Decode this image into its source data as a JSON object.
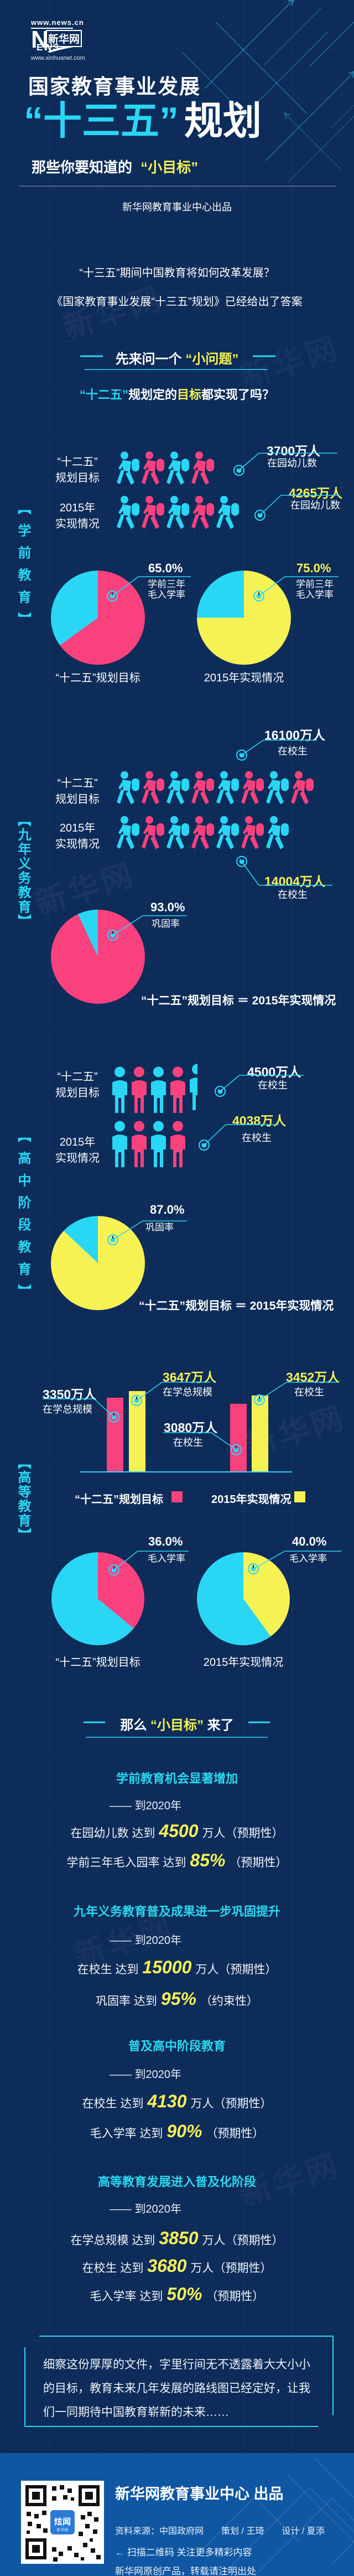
{
  "theme": {
    "bg": "#0d2c59",
    "cyan": "#29d7f5",
    "pink": "#f9417e",
    "yellow": "#f7f254",
    "white": "#ffffff",
    "footer_bg": "#0f57a2",
    "goal_title": "#2bd8f0"
  },
  "logo": {
    "top_url": "www.news.cn",
    "n": "N",
    "ews": "EWS",
    "brand": "新华网",
    "bottom_url": "www.xinhuanet.com"
  },
  "header": {
    "kicker": "国家教育事业发展",
    "title_em": "“十三五”",
    "title_rest": "规划",
    "sub_prefix": "那些你要知道的",
    "sub_em": "“小目标”",
    "byline": "新华网教育事业中心出品"
  },
  "intro": {
    "line1": "“十三五”期间中国教育将如何改革发展？",
    "line2": "《国家教育事业发展“十三五”规划》已经给出了答案",
    "ask_prefix": "先来问一个",
    "ask_em": "“小问题”",
    "q_em": "“十二五”",
    "q_mid": "规划定的",
    "q_target": "目标",
    "q_rest": "都实现了吗？"
  },
  "labels": {
    "preschool": "【学前教育】",
    "compulsory": "【九年义务教育】",
    "highschool": "【高中阶段教育】",
    "higher": "【高等教育】"
  },
  "rows": {
    "preschool_target": {
      "l1": "“十二五”",
      "l2": "规划目标",
      "icons": 4,
      "half": false,
      "type": "walk",
      "value": "3700万人",
      "metric": "在园幼儿数"
    },
    "preschool_actual": {
      "l1": "2015年",
      "l2": "实现情况",
      "icons": 5,
      "half": false,
      "type": "walk",
      "value": "4265万人",
      "metric": "在园幼儿数"
    },
    "compulsory_target": {
      "l1": "“十二五”",
      "l2": "规划目标",
      "icons": 8,
      "half": false,
      "type": "walk",
      "value": "16100万人",
      "metric": "在校生"
    },
    "compulsory_actual": {
      "l1": "2015年",
      "l2": "实现情况",
      "icons": 7,
      "half": false,
      "type": "walk",
      "value": "14004万人",
      "metric": "在校生"
    },
    "highschool_target": {
      "l1": "“十二五”",
      "l2": "规划目标",
      "icons": 4,
      "half": true,
      "type": "stand",
      "value": "4500万人",
      "metric": "在校生"
    },
    "highschool_actual": {
      "l1": "2015年",
      "l2": "实现情况",
      "icons": 4,
      "half": false,
      "type": "stand",
      "value": "4038万人",
      "metric": "在校生"
    }
  },
  "pies": {
    "preschool_target": {
      "pct_label": "65.0%",
      "sub1": "学前三年",
      "sub2": "毛入学率",
      "caption": "“十二五”规划目标"
    },
    "preschool_actual": {
      "pct_label": "75.0%",
      "sub1": "学前三年",
      "sub2": "毛入学率",
      "caption": "2015年实现情况"
    },
    "compulsory": {
      "pct_label": "93.0%",
      "sub1": "巩固率",
      "note": "“十二五”规划目标 ＝ 2015年实现情况"
    },
    "highschool": {
      "pct_label": "87.0%",
      "sub1": "巩固率",
      "note": "“十二五”规划目标 ＝ 2015年实现情况"
    },
    "higher_target": {
      "pct_label": "36.0%",
      "sub1": "毛入学率",
      "caption": "“十二五”规划目标"
    },
    "higher_actual": {
      "pct_label": "40.0%",
      "sub1": "毛入学率",
      "caption": "2015年实现情况"
    }
  },
  "bars": {
    "g1_target_value": "3350万人",
    "g1_target_metric": "在学总规模",
    "g1_actual_value": "3647万人",
    "g1_actual_metric": "在学总规模",
    "g2_target_value": "3080万人",
    "g2_target_metric": "在校生",
    "g2_actual_value": "3452万人",
    "g2_actual_metric": "在校生",
    "legend": [
      {
        "label": "“十二五”规划目标"
      },
      {
        "label": "2015年实现情况"
      }
    ]
  },
  "goals": {
    "head_pre": "那么",
    "head_em": "“小目标”",
    "head_post": "来了",
    "blocks": [
      {
        "title": "学前教育机会显著增加",
        "when": "—— 到2020年",
        "items": [
          {
            "pre": "在园幼儿数 达到",
            "num": "4500",
            "post": "万人（预期性）"
          },
          {
            "pre": "学前三年毛入园率 达到",
            "num": "85%",
            "post": "（预期性）"
          }
        ]
      },
      {
        "title": "九年义务教育普及成果进一步巩固提升",
        "when": "—— 到2020年",
        "items": [
          {
            "pre": "在校生 达到",
            "num": "15000",
            "post": "万人（预期性）"
          },
          {
            "pre": "巩固率 达到",
            "num": "95%",
            "post": "（约束性）"
          }
        ]
      },
      {
        "title": "普及高中阶段教育",
        "when": "—— 到2020年",
        "items": [
          {
            "pre": "在校生 达到",
            "num": "4130",
            "post": "万人（预期性）"
          },
          {
            "pre": "毛入学率 达到",
            "num": "90%",
            "post": "（预期性）"
          }
        ]
      },
      {
        "title": "高等教育发展进入普及化阶段",
        "when": "—— 到2020年",
        "items": [
          {
            "pre": "在学总规模 达到",
            "num": "3850",
            "post": "万人（预期性）"
          },
          {
            "pre": "在校生 达到",
            "num": "3680",
            "post": "万人（预期性）"
          },
          {
            "pre": "毛入学率 达到",
            "num": "50%",
            "post": "（预期性）"
          }
        ]
      }
    ]
  },
  "outro": "细察这份厚厚的文件，字里行间无不透露着大大小小的目标，教育未来几年发展的路线图已经定好，让我们一同期待中国教育崭新的未来……",
  "footer": {
    "title": "新华网教育事业中心 出品",
    "credits": "资料来源：中国政府网　　策划 / 王琦　　设计 / 夏添",
    "scan": "← 扫描二维码 关注更多精彩内容",
    "copyright": "新华网原创产品，转载请注明出处",
    "qr_label": "炫闻"
  },
  "chart_data": [
    {
      "type": "pictogram",
      "section": "学前教育",
      "metric": "在园幼儿数",
      "unit": "万人",
      "categories": [
        "“十二五”规划目标",
        "2015年实现情况"
      ],
      "values": [
        3700,
        4265
      ]
    },
    {
      "type": "pie",
      "section": "学前教育",
      "metric": "学前三年毛入学率",
      "unit": "%",
      "series": [
        {
          "name": "“十二五”规划目标",
          "value": 65.0
        },
        {
          "name": "2015年实现情况",
          "value": 75.0
        }
      ],
      "legend_position": "below"
    },
    {
      "type": "pictogram",
      "section": "九年义务教育",
      "metric": "在校生",
      "unit": "万人",
      "categories": [
        "“十二五”规划目标",
        "2015年实现情况"
      ],
      "values": [
        16100,
        14004
      ]
    },
    {
      "type": "pie",
      "section": "九年义务教育",
      "metric": "巩固率",
      "unit": "%",
      "series": [
        {
          "name": "“十二五”规划目标 ＝ 2015年实现情况",
          "value": 93.0
        }
      ]
    },
    {
      "type": "pictogram",
      "section": "高中阶段教育",
      "metric": "在校生",
      "unit": "万人",
      "categories": [
        "“十二五”规划目标",
        "2015年实现情况"
      ],
      "values": [
        4500,
        4038
      ]
    },
    {
      "type": "pie",
      "section": "高中阶段教育",
      "metric": "巩固率",
      "unit": "%",
      "series": [
        {
          "name": "“十二五”规划目标 ＝ 2015年实现情况",
          "value": 87.0
        }
      ]
    },
    {
      "type": "bar",
      "section": "高等教育",
      "unit": "万人",
      "categories": [
        "在学总规模",
        "在校生"
      ],
      "series": [
        {
          "name": "“十二五”规划目标",
          "values": [
            3350,
            3080
          ]
        },
        {
          "name": "2015年实现情况",
          "values": [
            3647,
            3452
          ]
        }
      ],
      "ylim": [
        0,
        4000
      ],
      "legend_position": "bottom"
    },
    {
      "type": "pie",
      "section": "高等教育",
      "metric": "毛入学率",
      "unit": "%",
      "series": [
        {
          "name": "“十二五”规划目标",
          "value": 36.0
        },
        {
          "name": "2015年实现情况",
          "value": 40.0
        }
      ],
      "legend_position": "below"
    }
  ]
}
